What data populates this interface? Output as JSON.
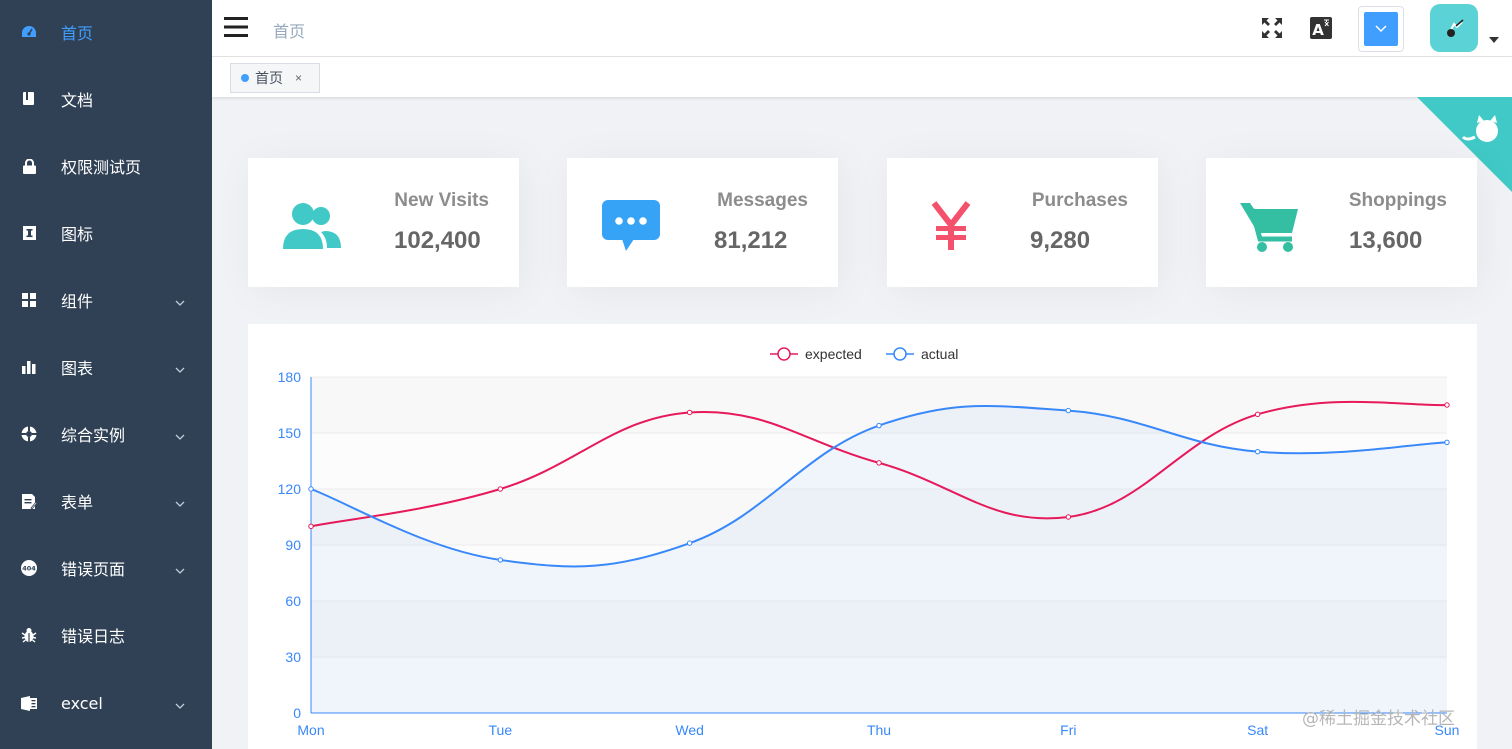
{
  "sidebar": {
    "items": [
      {
        "label": "首页",
        "icon": "dashboard-icon",
        "active": true,
        "has_children": false
      },
      {
        "label": "文档",
        "icon": "documentation-icon",
        "active": false,
        "has_children": false
      },
      {
        "label": "权限测试页",
        "icon": "lock-icon",
        "active": false,
        "has_children": false
      },
      {
        "label": "图标",
        "icon": "icon-icon",
        "active": false,
        "has_children": false
      },
      {
        "label": "组件",
        "icon": "component-icon",
        "active": false,
        "has_children": true
      },
      {
        "label": "图表",
        "icon": "chart-icon",
        "active": false,
        "has_children": true
      },
      {
        "label": "综合实例",
        "icon": "example-icon",
        "active": false,
        "has_children": true
      },
      {
        "label": "表单",
        "icon": "form-icon",
        "active": false,
        "has_children": true
      },
      {
        "label": "错误页面",
        "icon": "404-icon",
        "active": false,
        "has_children": true
      },
      {
        "label": "错误日志",
        "icon": "bug-icon",
        "active": false,
        "has_children": false
      },
      {
        "label": "excel",
        "icon": "excel-icon",
        "active": false,
        "has_children": true
      }
    ]
  },
  "navbar": {
    "breadcrumb": "首页",
    "lang_icon_text": "A",
    "icons": [
      "hamburger-icon",
      "fullscreen-icon",
      "translate-icon",
      "size-select-icon",
      "avatar",
      "caret-down-icon"
    ]
  },
  "tags_view": {
    "tags": [
      {
        "label": "首页",
        "close": "×"
      }
    ]
  },
  "panels": [
    {
      "title": "New Visits",
      "value": "102,400",
      "icon": "peoples-icon",
      "color": "#40c9c6"
    },
    {
      "title": "Messages",
      "value": "81,212",
      "icon": "message-icon",
      "color": "#36a3f7"
    },
    {
      "title": "Purchases",
      "value": "9,280",
      "icon": "money-icon",
      "color": "#f4516c"
    },
    {
      "title": "Shoppings",
      "value": "13,600",
      "icon": "shopping-icon",
      "color": "#34bfa3"
    }
  ],
  "chart_data": {
    "type": "line",
    "categories": [
      "Mon",
      "Tue",
      "Wed",
      "Thu",
      "Fri",
      "Sat",
      "Sun"
    ],
    "series": [
      {
        "name": "expected",
        "values": [
          100,
          120,
          161,
          134,
          105,
          160,
          165
        ],
        "color": "#e6195a"
      },
      {
        "name": "actual",
        "values": [
          120,
          82,
          91,
          154,
          162,
          140,
          145
        ],
        "color": "#3888fa"
      }
    ],
    "ylim": [
      0,
      180
    ],
    "yticks": [
      0,
      30,
      60,
      90,
      120,
      150,
      180
    ],
    "smooth": true,
    "legend": "top-center",
    "grid": true
  },
  "watermark": "@稀土掘金技术社区"
}
